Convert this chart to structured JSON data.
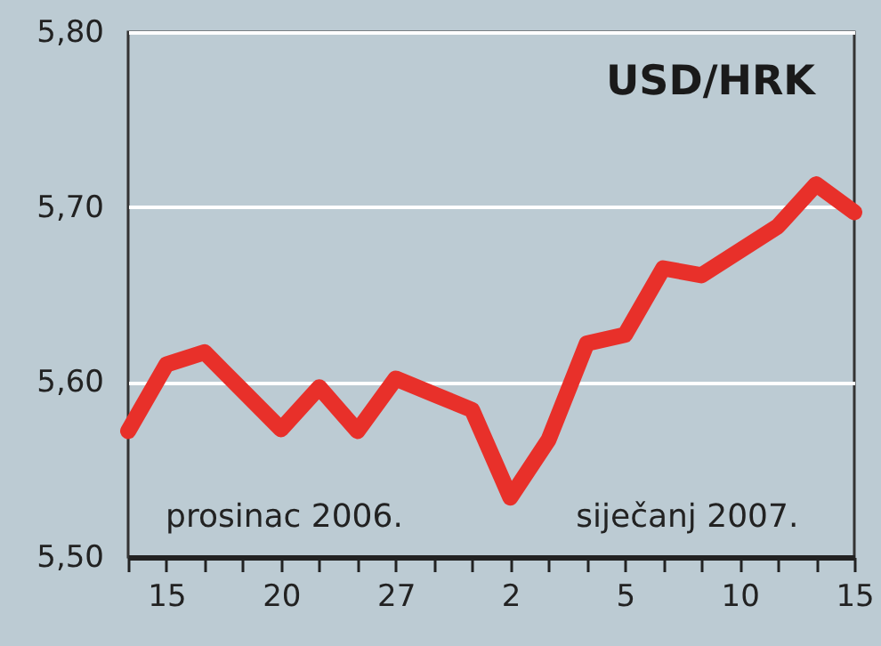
{
  "chart_data": {
    "type": "line",
    "title": "USD/HRK",
    "categories": [
      null,
      "15",
      null,
      null,
      "20",
      null,
      null,
      "27",
      null,
      null,
      "2",
      null,
      null,
      "5",
      null,
      null,
      "10",
      null,
      null,
      "15"
    ],
    "series": [
      {
        "color": "#e8302a",
        "values": [
          5.572,
          5.61,
          5.617,
          5.595,
          5.573,
          5.597,
          5.572,
          5.602,
          5.593,
          5.584,
          5.534,
          5.567,
          5.622,
          5.627,
          5.665,
          5.661,
          5.675,
          5.689,
          5.713,
          5.697
        ]
      }
    ],
    "ylim": [
      5.5,
      5.8
    ],
    "yticks": [
      {
        "value": 5.5,
        "label": "5,50"
      },
      {
        "value": 5.6,
        "label": "5,60"
      },
      {
        "value": 5.7,
        "label": "5,70"
      },
      {
        "value": 5.8,
        "label": "5,80"
      }
    ],
    "grid": "y",
    "marker": "none",
    "line_style": "solid",
    "annotations": [
      "prosinac 2006.",
      "siječanj 2007."
    ]
  }
}
